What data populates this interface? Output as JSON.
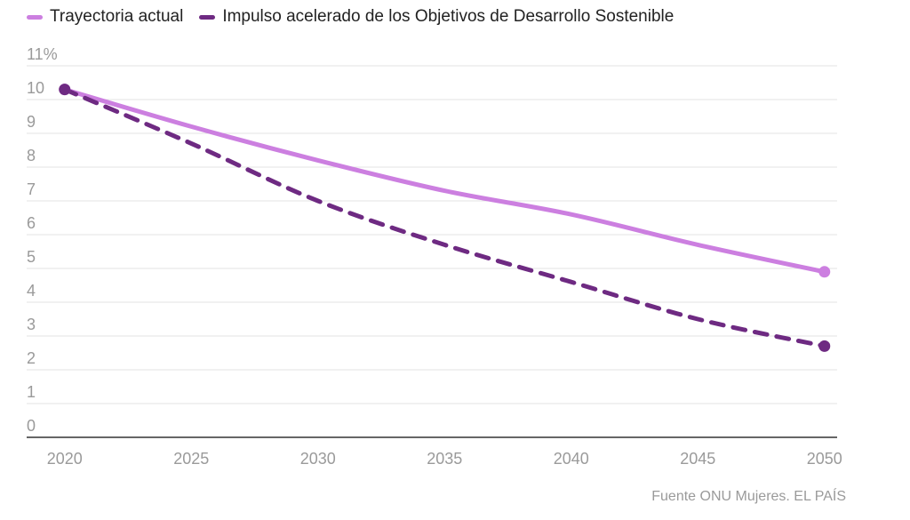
{
  "legend": [
    {
      "label": "Trayectoria actual",
      "color": "#cc7fe0"
    },
    {
      "label": "Impulso acelerado de los Objetivos de Desarrollo Sostenible",
      "color": "#6e2a82"
    }
  ],
  "source": "Fuente ONU Mujeres. EL PAÍS",
  "chart_data": {
    "type": "line",
    "x": [
      2020,
      2025,
      2030,
      2035,
      2040,
      2045,
      2050
    ],
    "series": [
      {
        "name": "Trayectoria actual",
        "values": [
          10.3,
          9.2,
          8.2,
          7.3,
          6.6,
          5.7,
          4.9
        ],
        "color": "#cc7fe0",
        "style": "solid"
      },
      {
        "name": "Impulso acelerado de los Objetivos de Desarrollo Sostenible",
        "values": [
          10.3,
          8.7,
          7.0,
          5.7,
          4.6,
          3.5,
          2.7
        ],
        "color": "#6e2a82",
        "style": "dashed"
      }
    ],
    "xlim": [
      2018.5,
      2050.5
    ],
    "ylim": [
      0,
      11
    ],
    "yticks": [
      "0",
      "1",
      "2",
      "3",
      "4",
      "5",
      "6",
      "7",
      "8",
      "9",
      "10",
      "11%"
    ],
    "xticks": [
      "2020",
      "2025",
      "2030",
      "2035",
      "2040",
      "2045",
      "2050"
    ],
    "grid": true,
    "legend_position": "top-left"
  }
}
